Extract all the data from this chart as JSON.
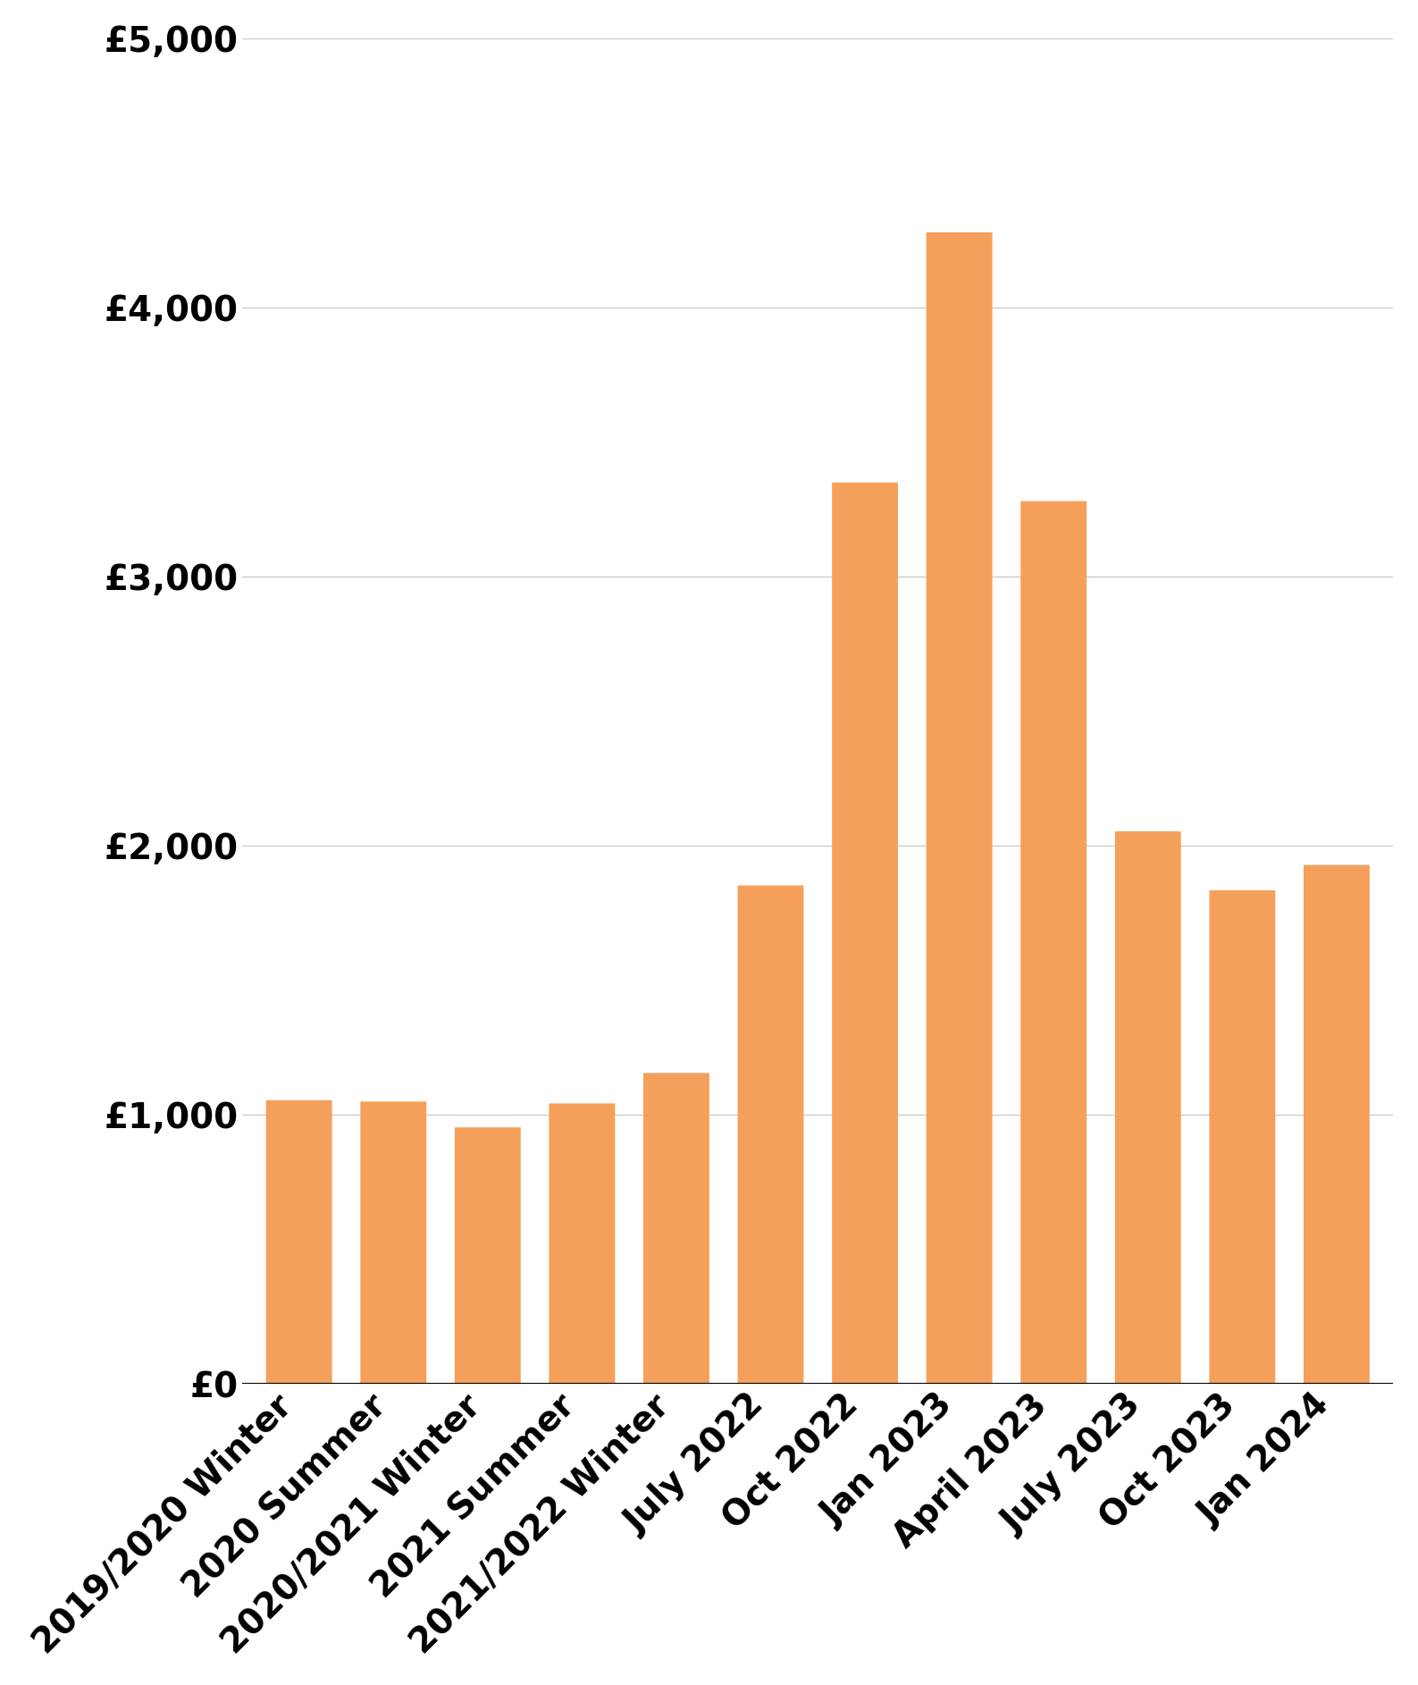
{
  "categories": [
    "2019/2020 Winter",
    "2020 Summer",
    "2020/2021 Winter",
    "2021 Summer",
    "2021/2022 Winter",
    "July 2022",
    "Oct 2022",
    "Jan 2023",
    "April 2023",
    "July 2023",
    "Oct 2023",
    "Jan 2024"
  ],
  "values": [
    1054,
    1049,
    953,
    1042,
    1155,
    1852,
    3349,
    4279,
    3280,
    2053,
    1834,
    1928
  ],
  "bar_color": "#F5A05A",
  "ylim": [
    0,
    5000
  ],
  "yticks": [
    0,
    1000,
    2000,
    3000,
    4000,
    5000
  ],
  "ytick_labels": [
    "£0",
    "£1,000",
    "£2,000",
    "£3,000",
    "£4,000",
    "£5,000"
  ],
  "background_color": "#ffffff",
  "grid_color": "#cccccc",
  "tick_label_fontsize": 28,
  "bar_width": 0.7
}
